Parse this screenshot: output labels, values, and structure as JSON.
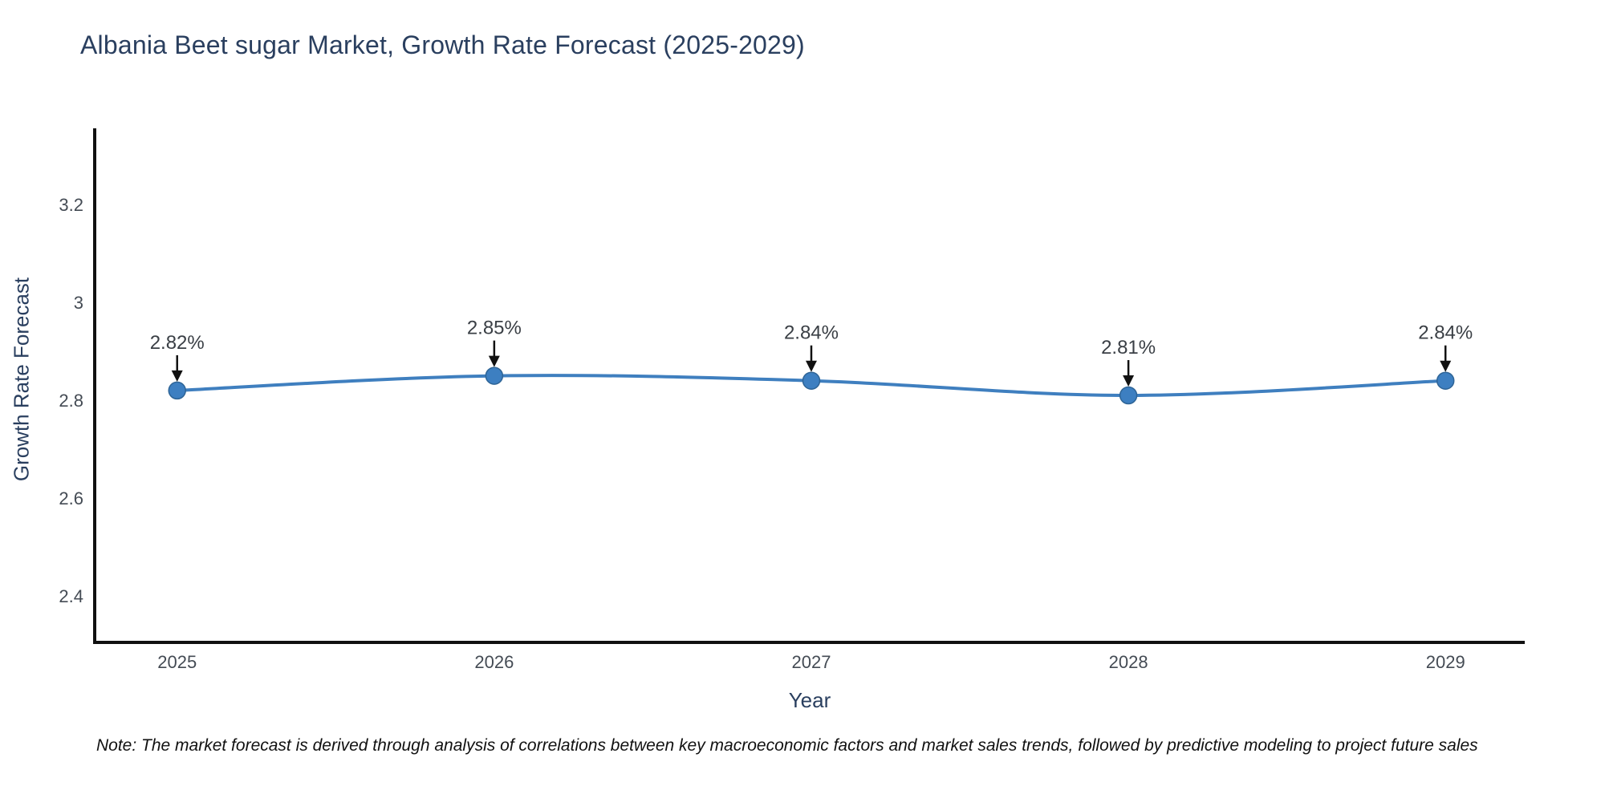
{
  "page": {
    "background": "#ffffff"
  },
  "chart_data": {
    "type": "line",
    "title": "Albania Beet sugar Market, Growth Rate Forecast (2025-2029)",
    "xlabel": "Year",
    "ylabel": "Growth Rate Forecast",
    "x": [
      2025,
      2026,
      2027,
      2028,
      2029
    ],
    "series": [
      {
        "name": "Growth Rate Forecast",
        "values": [
          2.82,
          2.85,
          2.84,
          2.81,
          2.84
        ]
      }
    ],
    "point_labels": [
      "2.82%",
      "2.85%",
      "2.84%",
      "2.81%",
      "2.84%"
    ],
    "xtick_labels": [
      "2025",
      "2026",
      "2027",
      "2028",
      "2029"
    ],
    "ytick_values": [
      2.4,
      2.6,
      2.8,
      3,
      3.2
    ],
    "ytick_labels": [
      "2.4",
      "2.6",
      "2.8",
      "3",
      "3.2"
    ],
    "xlim": [
      2024.74,
      2029.25
    ],
    "ylim": [
      2.305,
      3.356
    ],
    "grid": false,
    "legend_position": "none",
    "line_shape": "spline",
    "annotation_style": "label-with-down-arrow",
    "colors": {
      "line": "#3f7fbf",
      "marker_fill": "#3d7fc1",
      "marker_edge": "#2e6496",
      "axis": "#111111",
      "arrow": "#111111",
      "title_text": "#2a3f5f",
      "tick_text": "#444b54",
      "annotation_text": "#3a3f45"
    }
  },
  "note": {
    "text": "Note: The market forecast is derived through analysis of correlations between key macroeconomic factors and market sales trends, followed by predictive modeling to project future sales"
  }
}
